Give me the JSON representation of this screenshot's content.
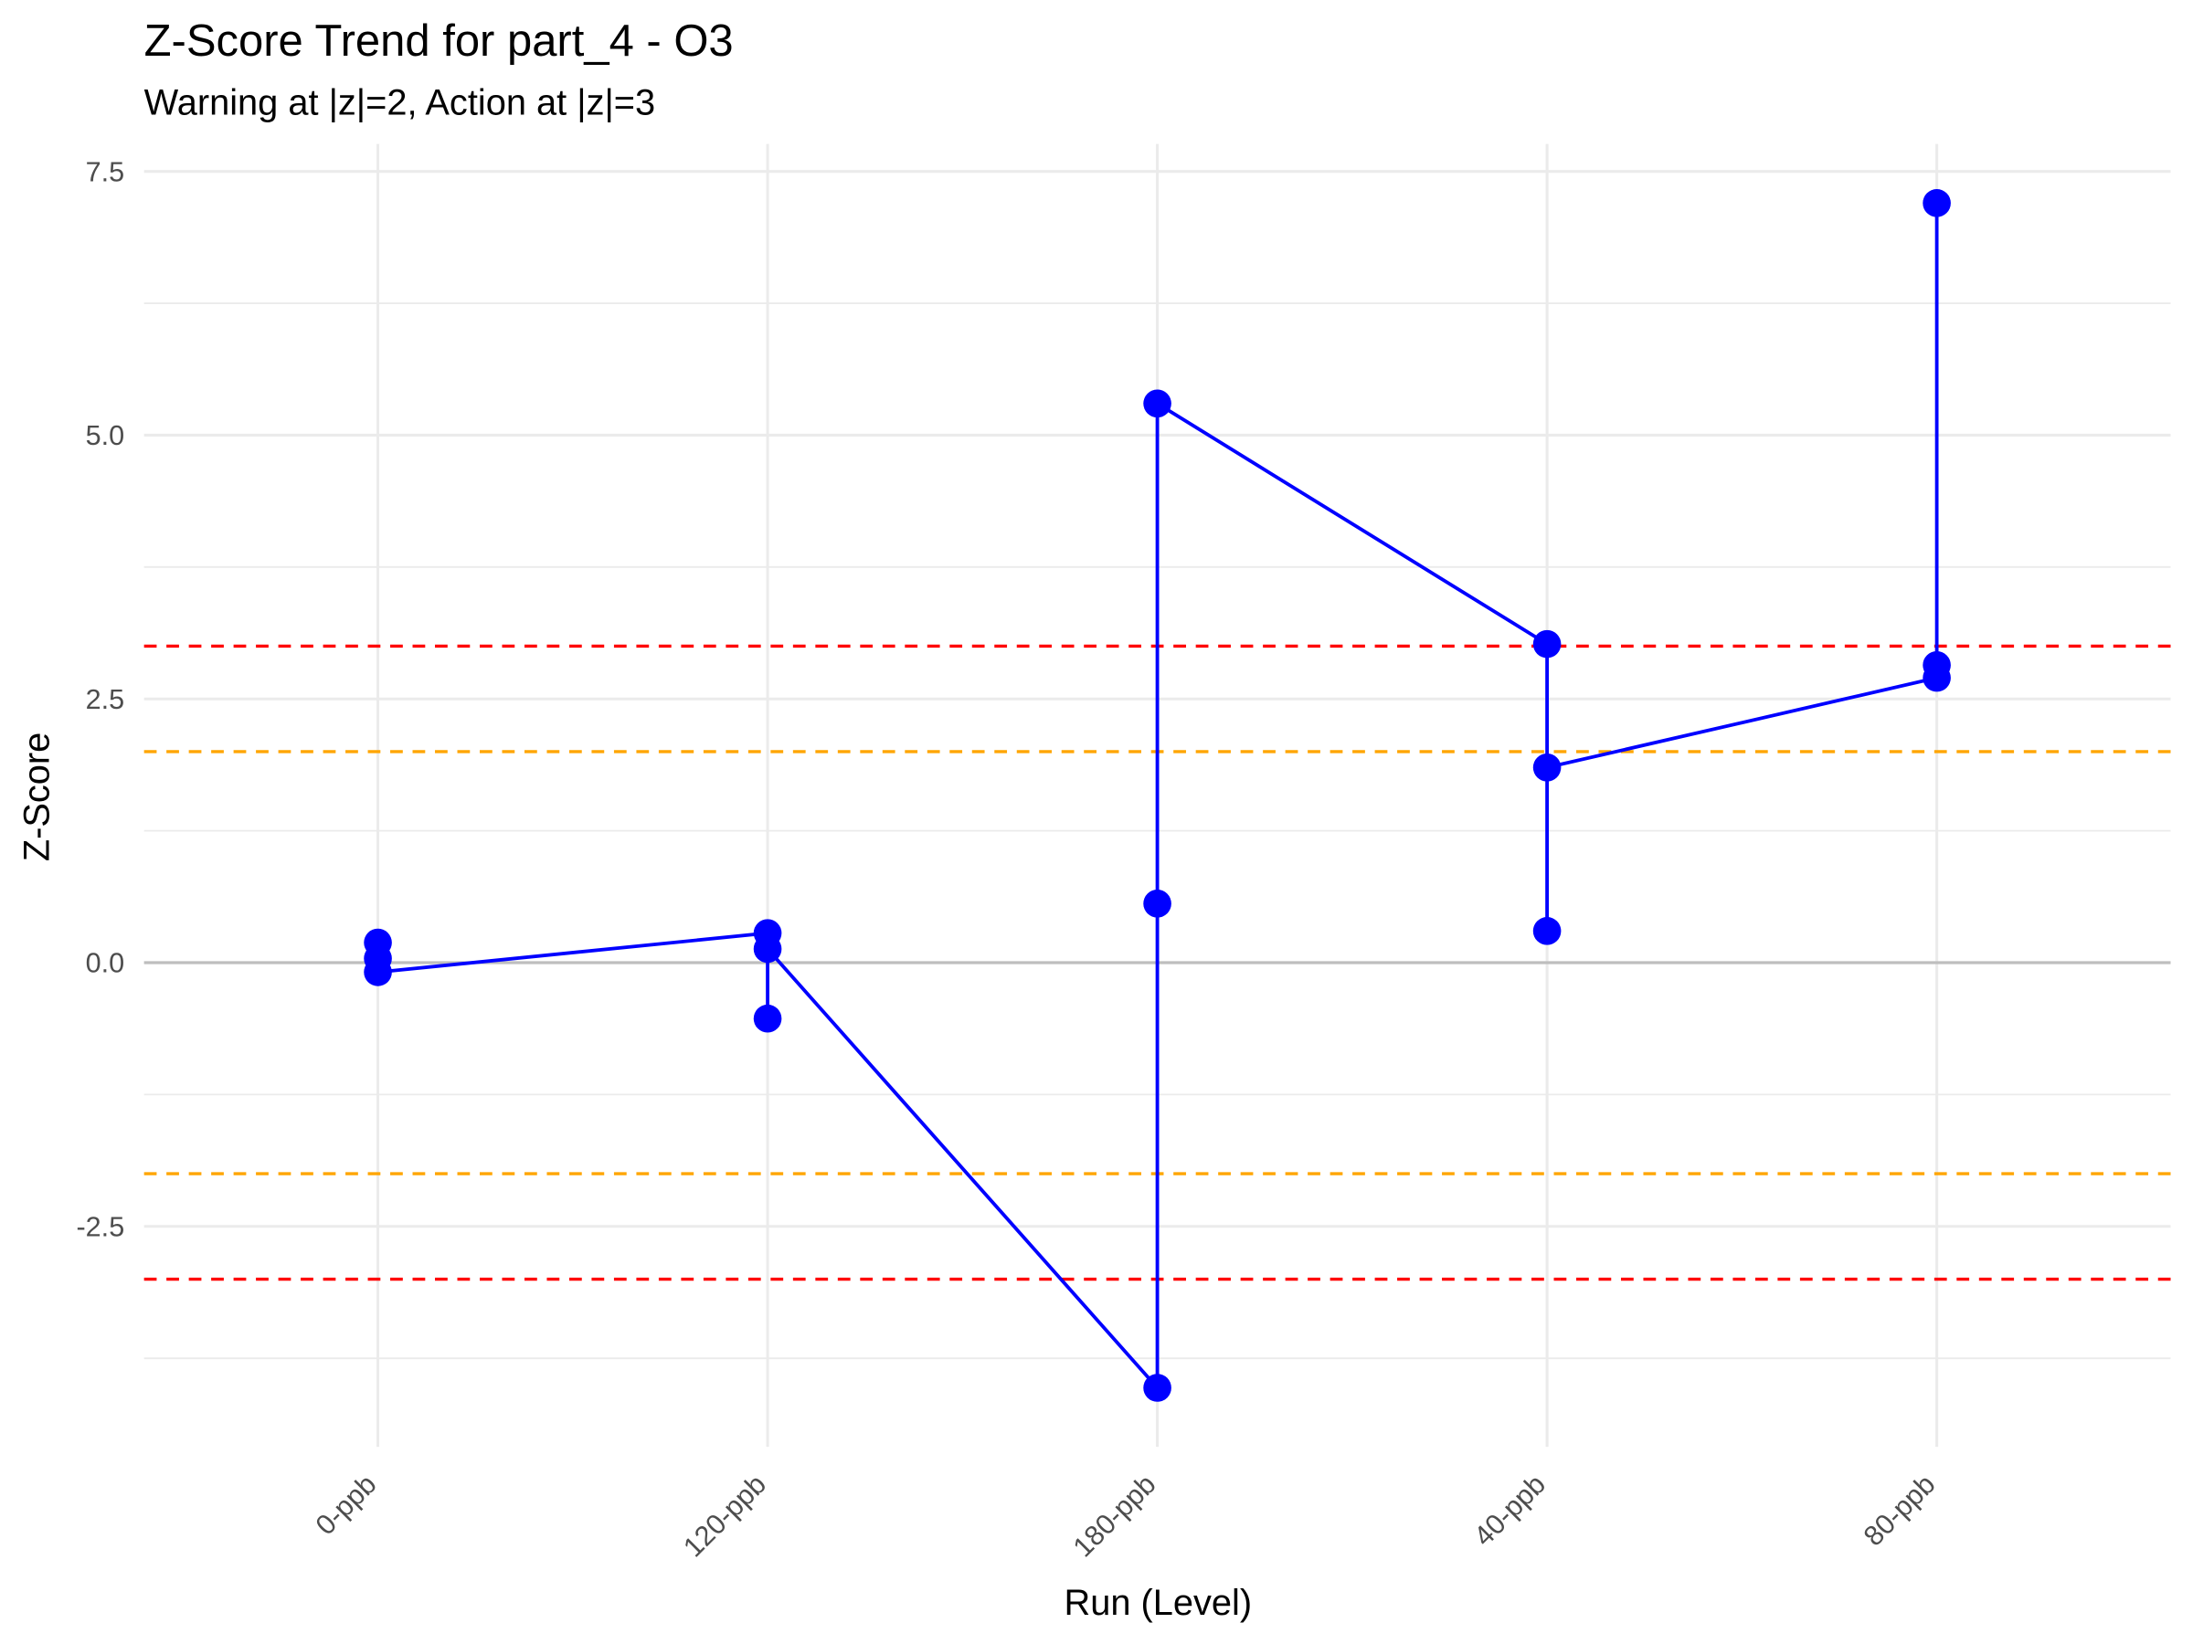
{
  "chart_data": {
    "type": "line",
    "title": "Z-Score Trend for part_4 - O3",
    "subtitle": "Warning at |z|=2, Action at |z|=3",
    "x_label": "Run (Level)",
    "y_label": "Z-Score",
    "categories": [
      "0-ppb",
      "120-ppb",
      "180-ppb",
      "40-ppb",
      "80-ppb"
    ],
    "series": [
      {
        "color": "#0000ff",
        "x": [
          "0-ppb",
          "0-ppb",
          "0-ppb",
          "120-ppb",
          "120-ppb",
          "120-ppb",
          "180-ppb",
          "180-ppb",
          "180-ppb",
          "40-ppb",
          "40-ppb",
          "40-ppb",
          "80-ppb",
          "80-ppb",
          "80-ppb"
        ],
        "values": [
          0.19,
          0.04,
          -0.09,
          0.28,
          -0.53,
          0.13,
          -4.03,
          0.56,
          5.3,
          3.02,
          0.3,
          1.85,
          2.7,
          2.82,
          7.2
        ]
      }
    ],
    "ylim": [
      -4.59,
      7.76
    ],
    "yticks": [
      {
        "value": -2.5,
        "label": "-2.5"
      },
      {
        "value": 0,
        "label": "0.0"
      },
      2.5,
      {
        "value": 5,
        "label": "5.0"
      },
      7.5
    ],
    "minor_yticks": [
      -3.75,
      -1.25,
      1.25,
      3.75,
      6.25
    ],
    "grid": true,
    "reference_lines": [
      {
        "value": 0,
        "color": "#bebebe",
        "dashed": false
      },
      {
        "value": 3,
        "color": "#ff0000",
        "dashed": true
      },
      {
        "value": -3,
        "color": "#ff0000",
        "dashed": true
      },
      {
        "value": 2,
        "color": "#ffa500",
        "dashed": true
      },
      {
        "value": -2,
        "color": "#ffa500",
        "dashed": true
      }
    ]
  }
}
